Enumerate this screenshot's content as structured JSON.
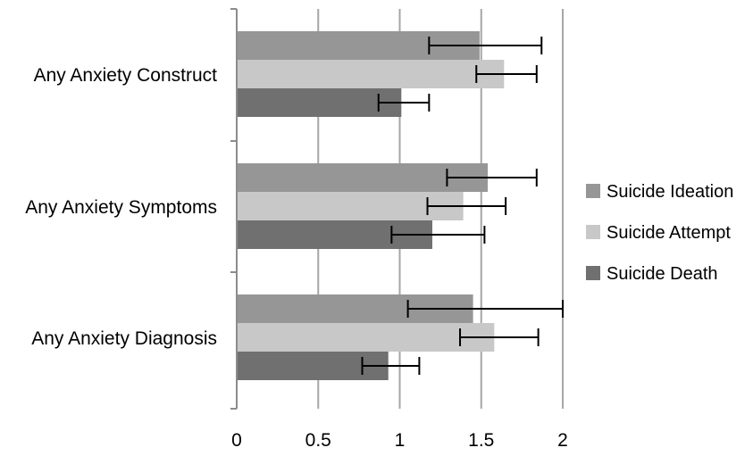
{
  "chart_data": {
    "type": "bar",
    "orientation": "horizontal",
    "categories": [
      "Any Anxiety Construct",
      "Any Anxiety Symptoms",
      "Any Anxiety Diagnosis"
    ],
    "series": [
      {
        "name": "Suicide Ideation",
        "color": "#969696",
        "values": [
          1.49,
          1.54,
          1.45
        ],
        "error_low": [
          1.18,
          1.29,
          1.05
        ],
        "error_high": [
          1.87,
          1.84,
          2.0
        ]
      },
      {
        "name": "Suicide Attempt",
        "color": "#c8c8c8",
        "values": [
          1.64,
          1.39,
          1.58
        ],
        "error_low": [
          1.47,
          1.17,
          1.37
        ],
        "error_high": [
          1.84,
          1.65,
          1.85
        ]
      },
      {
        "name": "Suicide Death",
        "color": "#707070",
        "values": [
          1.01,
          1.2,
          0.93
        ],
        "error_low": [
          0.87,
          0.95,
          0.77
        ],
        "error_high": [
          1.18,
          1.52,
          1.12
        ]
      }
    ],
    "xlim": [
      0,
      2
    ],
    "x_ticks": [
      "0",
      "0.5",
      "1",
      "1.5",
      "2"
    ],
    "x_tick_values": [
      0,
      0.5,
      1,
      1.5,
      2
    ],
    "grid": "vertical",
    "legend_position": "right",
    "title": "",
    "xlabel": "",
    "ylabel": ""
  }
}
